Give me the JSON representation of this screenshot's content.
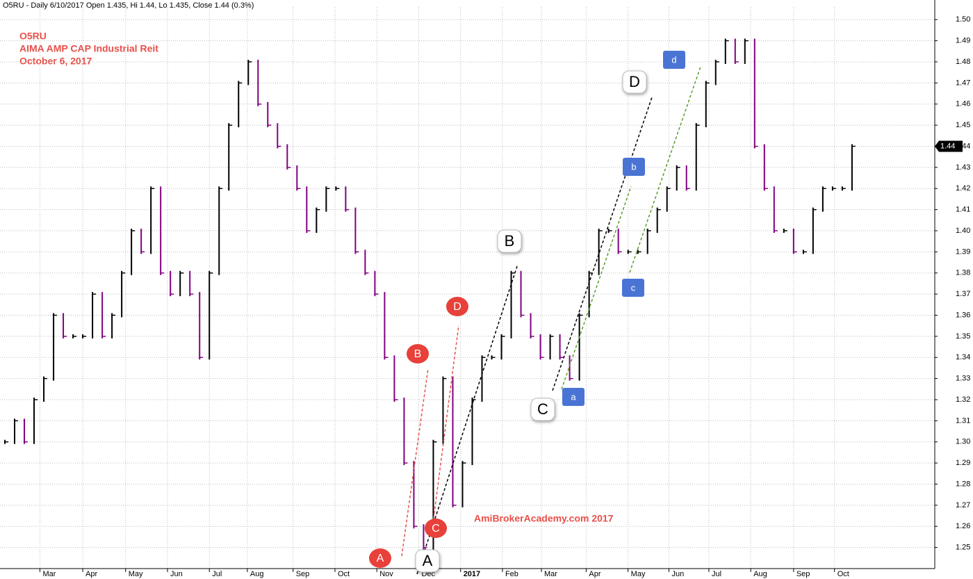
{
  "chart_data": {
    "type": "price-bars",
    "title": "O5RU - Daily 6/10/2017 Open 1.435, Hi 1.44, Lo 1.435, Close 1.44 (0.3%)",
    "notes": [
      "O5RU",
      "AIMA AMP CAP Industrial Reit",
      "October 6, 2017"
    ],
    "watermark": "AmiBrokerAcademy.com 2017",
    "annotations": [
      "A",
      "B",
      "C",
      "D",
      "A",
      "B",
      "C",
      "D",
      "a",
      "b",
      "c",
      "d"
    ],
    "last_price": 1.44,
    "up_color": "#000000",
    "down_color": "#800080",
    "values": [
      1.3,
      1.31,
      1.3,
      1.32,
      1.33,
      1.36,
      1.35,
      1.35,
      1.35,
      1.37,
      1.35,
      1.36,
      1.38,
      1.4,
      1.39,
      1.42,
      1.38,
      1.37,
      1.38,
      1.37,
      1.34,
      1.38,
      1.42,
      1.45,
      1.47,
      1.48,
      1.46,
      1.45,
      1.44,
      1.43,
      1.42,
      1.4,
      1.41,
      1.42,
      1.42,
      1.41,
      1.39,
      1.38,
      1.37,
      1.34,
      1.32,
      1.29,
      1.26,
      1.25,
      1.3,
      1.33,
      1.27,
      1.29,
      1.32,
      1.34,
      1.34,
      1.35,
      1.38,
      1.36,
      1.35,
      1.34,
      1.35,
      1.34,
      1.33,
      1.36,
      1.38,
      1.4,
      1.4,
      1.39,
      1.39,
      1.39,
      1.4,
      1.41,
      1.42,
      1.43,
      1.42,
      1.45,
      1.47,
      1.48,
      1.49,
      1.48,
      1.49,
      1.44,
      1.42,
      1.4,
      1.4,
      1.39,
      1.39,
      1.41,
      1.42,
      1.42,
      1.42,
      1.44
    ],
    "xlim": [
      0,
      96
    ],
    "xticks": [
      {
        "value": 4.1,
        "label": "Mar"
      },
      {
        "value": 8.5,
        "label": "Apr"
      },
      {
        "value": 12.9,
        "label": "May"
      },
      {
        "value": 17.2,
        "label": "Jun"
      },
      {
        "value": 21.5,
        "label": "Jul"
      },
      {
        "value": 25.4,
        "label": "Aug"
      },
      {
        "value": 30.1,
        "label": "Sep"
      },
      {
        "value": 34.4,
        "label": "Oct"
      },
      {
        "value": 38.7,
        "label": "Nov"
      },
      {
        "value": 43,
        "label": "Dec"
      },
      {
        "value": 47.3,
        "label": "2017"
      },
      {
        "value": 51.6,
        "label": "Feb"
      },
      {
        "value": 55.6,
        "label": "Mar"
      },
      {
        "value": 60.2,
        "label": "Apr"
      },
      {
        "value": 64.5,
        "label": "May"
      },
      {
        "value": 68.7,
        "label": "Jun"
      },
      {
        "value": 72.8,
        "label": "Jul"
      },
      {
        "value": 77.1,
        "label": "Aug"
      },
      {
        "value": 81.5,
        "label": "Sep"
      },
      {
        "value": 85.7,
        "label": "Oct"
      }
    ],
    "ylim": [
      1.24,
      1.506
    ],
    "yticks": [
      1.25,
      1.26,
      1.27,
      1.28,
      1.29,
      {
        "value": 1.3,
        "label": "1.30"
      },
      1.31,
      1.32,
      1.33,
      1.34,
      1.35,
      1.36,
      1.37,
      1.38,
      1.39,
      {
        "value": 1.4,
        "label": "1.40"
      },
      1.41,
      1.42,
      1.43,
      1.44,
      1.45,
      1.46,
      1.47,
      1.48,
      1.49,
      {
        "value": 1.5,
        "label": "1.50"
      }
    ],
    "grid": true
  }
}
